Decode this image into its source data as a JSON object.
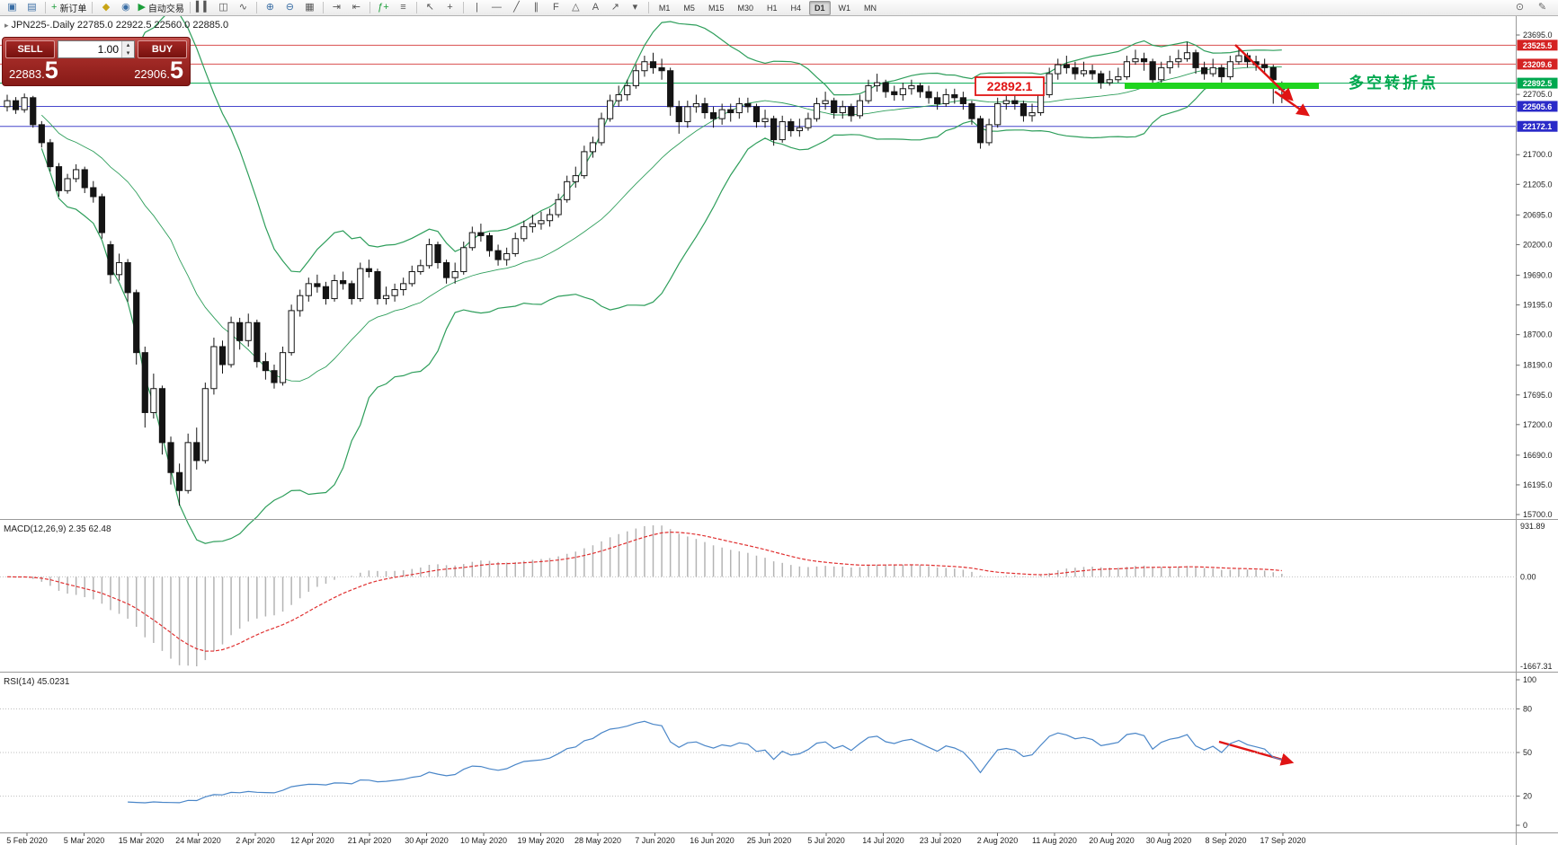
{
  "toolbar": {
    "items": [
      {
        "name": "new-chart-icon",
        "glyph": "▣",
        "color": "#3a6ea5"
      },
      {
        "name": "profiles-icon",
        "glyph": "▤",
        "color": "#3a6ea5"
      },
      {
        "sep": true
      },
      {
        "name": "new-order-button",
        "glyph": "+",
        "color": "#1c9e3a",
        "label": "新订单"
      },
      {
        "sep": true
      },
      {
        "name": "alerts-icon",
        "glyph": "◆",
        "color": "#c8a415"
      },
      {
        "name": "market-watch-icon",
        "glyph": "◉",
        "color": "#3a6ea5"
      },
      {
        "name": "autotrading-button",
        "glyph": "▶",
        "color": "#1c9e3a",
        "label": "自动交易"
      },
      {
        "sep": true
      },
      {
        "name": "bar-chart-icon",
        "glyph": "▍▍",
        "color": "#555555"
      },
      {
        "name": "candlestick-chart-icon",
        "glyph": "◫",
        "color": "#555555"
      },
      {
        "name": "line-chart-icon",
        "glyph": "∿",
        "color": "#555555"
      },
      {
        "sep": true
      },
      {
        "name": "zoom-in-icon",
        "glyph": "⊕",
        "color": "#3a6ea5"
      },
      {
        "name": "zoom-out-icon",
        "glyph": "⊖",
        "color": "#3a6ea5"
      },
      {
        "name": "tile-windows-icon",
        "glyph": "▦",
        "color": "#555555"
      },
      {
        "sep": true
      },
      {
        "name": "auto-scroll-icon",
        "glyph": "⇥",
        "color": "#555555"
      },
      {
        "name": "chart-shift-icon",
        "glyph": "⇤",
        "color": "#555555"
      },
      {
        "sep": true
      },
      {
        "name": "indicators-icon",
        "glyph": "ƒ+",
        "color": "#1c9e3a"
      },
      {
        "name": "indicator-list-icon",
        "glyph": "≡",
        "color": "#555555"
      },
      {
        "sep": true
      },
      {
        "name": "cursor-icon",
        "glyph": "↖",
        "color": "#555555"
      },
      {
        "name": "crosshair-icon",
        "glyph": "+",
        "color": "#555555"
      },
      {
        "sep": true
      },
      {
        "name": "vertical-line-icon",
        "glyph": "|",
        "color": "#555555"
      },
      {
        "name": "horizontal-line-icon",
        "glyph": "—",
        "color": "#555555"
      },
      {
        "name": "trendline-icon",
        "glyph": "╱",
        "color": "#555555"
      },
      {
        "name": "channel-icon",
        "glyph": "∥",
        "color": "#555555"
      },
      {
        "name": "fibonacci-icon",
        "glyph": "F",
        "color": "#555555"
      },
      {
        "name": "shapes-icon",
        "glyph": "△",
        "color": "#555555"
      },
      {
        "name": "text-icon",
        "glyph": "A",
        "color": "#555555"
      },
      {
        "name": "arrows-icon",
        "glyph": "↗",
        "color": "#555555"
      },
      {
        "name": "objects-dropdown-icon",
        "glyph": "▾",
        "color": "#555555"
      },
      {
        "sep": true
      },
      {
        "timeframes": true
      }
    ],
    "timeframes": {
      "list": [
        "M1",
        "M5",
        "M15",
        "M30",
        "H1",
        "H4",
        "D1",
        "W1",
        "MN"
      ],
      "active": "D1"
    },
    "right_items": [
      {
        "name": "quick-search-icon",
        "glyph": "⊙",
        "color": "#666666"
      },
      {
        "name": "edit-icon",
        "glyph": "✎",
        "color": "#666666"
      }
    ]
  },
  "trade_panel": {
    "sell_label": "SELL",
    "buy_label": "BUY",
    "volume": "1.00",
    "bid_small": "22883.",
    "bid_big": "5",
    "ask_small": "22906.",
    "ask_big": "5"
  },
  "chart": {
    "symbol_icon": "▸",
    "symbol_line": "JPN225-.Daily 22785.0 22922.5 22560.0 22885.0",
    "colors": {
      "bands": "#2e9e5b",
      "bull": "#ffffff",
      "bear": "#141414",
      "wick": "#141414"
    },
    "price_axis_ticks": [
      "23695.0",
      "22705.0",
      "21700.0",
      "21205.0",
      "20695.0",
      "20200.0",
      "19690.0",
      "19195.0",
      "18700.0",
      "18190.0",
      "17695.0",
      "17200.0",
      "16690.0",
      "16195.0",
      "15700.0"
    ],
    "hlines": [
      {
        "label": "23525.5",
        "price": 23525.5,
        "line": "#d94f4f",
        "tag": "#d42222"
      },
      {
        "label": "23209.6",
        "price": 23209.6,
        "line": "#d94f4f",
        "tag": "#d42222"
      },
      {
        "label": "22892.5",
        "price": 22892.5,
        "line": "#00a84f",
        "tag": "#00a84f"
      },
      {
        "label": "22505.6",
        "price": 22505.6,
        "line": "#4646cc",
        "tag": "#2a2ac8"
      },
      {
        "label": "22172.1",
        "price": 22172.1,
        "line": "#4646cc",
        "tag": "#2a2ac8"
      }
    ],
    "annotations": {
      "price_flag": "22892.1",
      "turning_point_label": "多空转折点",
      "flag_color": "#e01414",
      "label_color": "#00a84f",
      "highlight_color": "#1fd41f",
      "arrow_color": "#e01414"
    }
  },
  "chart_data": {
    "type": "candlestick",
    "symbol": "JPN225-",
    "timeframe": "Daily",
    "ohlc_display": {
      "open": "22785.0",
      "high": "22922.5",
      "low": "22560.0",
      "close": "22885.0"
    },
    "ylim": [
      15700,
      23695
    ],
    "x_labels": [
      "5 Feb 2020",
      "5 Mar 2020",
      "15 Mar 2020",
      "24 Mar 2020",
      "2 Apr 2020",
      "12 Apr 2020",
      "21 Apr 2020",
      "30 Apr 2020",
      "10 May 2020",
      "19 May 2020",
      "28 May 2020",
      "7 Jun 2020",
      "16 Jun 2020",
      "25 Jun 2020",
      "5 Jul 2020",
      "14 Jul 2020",
      "23 Jul 2020",
      "2 Aug 2020",
      "11 Aug 2020",
      "20 Aug 2020",
      "30 Aug 2020",
      "8 Sep 2020",
      "17 Sep 2020"
    ],
    "candles": [
      [
        22500,
        22700,
        22420,
        22600
      ],
      [
        22600,
        22660,
        22380,
        22450
      ],
      [
        22450,
        22720,
        22400,
        22650
      ],
      [
        22650,
        22680,
        22150,
        22200
      ],
      [
        22200,
        22260,
        21820,
        21900
      ],
      [
        21900,
        21960,
        21420,
        21500
      ],
      [
        21500,
        21560,
        21000,
        21100
      ],
      [
        21100,
        21380,
        21050,
        21300
      ],
      [
        21300,
        21540,
        21240,
        21450
      ],
      [
        21450,
        21500,
        21060,
        21150
      ],
      [
        21150,
        21260,
        20900,
        21000
      ],
      [
        21000,
        21050,
        20300,
        20400
      ],
      [
        20200,
        20260,
        19550,
        19700
      ],
      [
        19700,
        20050,
        19600,
        19900
      ],
      [
        19900,
        19960,
        19250,
        19400
      ],
      [
        19400,
        19450,
        18200,
        18400
      ],
      [
        18400,
        18500,
        17150,
        17400
      ],
      [
        17400,
        18050,
        17300,
        17800
      ],
      [
        17800,
        17850,
        16700,
        16900
      ],
      [
        16900,
        17000,
        16200,
        16400
      ],
      [
        16400,
        16550,
        15850,
        16100
      ],
      [
        16100,
        17050,
        16050,
        16900
      ],
      [
        16900,
        17150,
        16450,
        16600
      ],
      [
        16600,
        17900,
        16550,
        17800
      ],
      [
        17800,
        18650,
        17700,
        18500
      ],
      [
        18500,
        18600,
        18050,
        18200
      ],
      [
        18200,
        19000,
        18150,
        18900
      ],
      [
        18900,
        18980,
        18450,
        18600
      ],
      [
        18600,
        19050,
        18500,
        18900
      ],
      [
        18900,
        18950,
        18150,
        18250
      ],
      [
        18250,
        18400,
        17950,
        18100
      ],
      [
        18100,
        18200,
        17800,
        17900
      ],
      [
        17900,
        18500,
        17850,
        18400
      ],
      [
        18400,
        19200,
        18350,
        19100
      ],
      [
        19100,
        19450,
        19000,
        19350
      ],
      [
        19350,
        19650,
        19250,
        19550
      ],
      [
        19550,
        19700,
        19400,
        19500
      ],
      [
        19500,
        19580,
        19200,
        19300
      ],
      [
        19300,
        19700,
        19250,
        19600
      ],
      [
        19600,
        19750,
        19450,
        19550
      ],
      [
        19550,
        19600,
        19200,
        19300
      ],
      [
        19300,
        19900,
        19250,
        19800
      ],
      [
        19800,
        19950,
        19650,
        19750
      ],
      [
        19750,
        19800,
        19200,
        19300
      ],
      [
        19300,
        19500,
        19200,
        19350
      ],
      [
        19350,
        19550,
        19250,
        19450
      ],
      [
        19450,
        19650,
        19350,
        19550
      ],
      [
        19550,
        19850,
        19500,
        19750
      ],
      [
        19750,
        19950,
        19700,
        19850
      ],
      [
        19850,
        20300,
        19800,
        20200
      ],
      [
        20200,
        20250,
        19800,
        19900
      ],
      [
        19900,
        19950,
        19550,
        19650
      ],
      [
        19650,
        19900,
        19550,
        19750
      ],
      [
        19750,
        20250,
        19700,
        20150
      ],
      [
        20150,
        20500,
        20100,
        20400
      ],
      [
        20400,
        20550,
        20250,
        20350
      ],
      [
        20350,
        20400,
        20000,
        20100
      ],
      [
        20100,
        20200,
        19850,
        19950
      ],
      [
        19950,
        20150,
        19850,
        20050
      ],
      [
        20050,
        20400,
        20000,
        20300
      ],
      [
        20300,
        20600,
        20250,
        20500
      ],
      [
        20500,
        20700,
        20400,
        20550
      ],
      [
        20550,
        20750,
        20450,
        20600
      ],
      [
        20600,
        20800,
        20500,
        20700
      ],
      [
        20700,
        21050,
        20650,
        20950
      ],
      [
        20950,
        21350,
        20900,
        21250
      ],
      [
        21250,
        21500,
        21150,
        21350
      ],
      [
        21350,
        21850,
        21300,
        21750
      ],
      [
        21750,
        22000,
        21650,
        21900
      ],
      [
        21900,
        22400,
        21850,
        22300
      ],
      [
        22300,
        22700,
        22250,
        22600
      ],
      [
        22600,
        22850,
        22500,
        22700
      ],
      [
        22700,
        22950,
        22600,
        22850
      ],
      [
        22850,
        23200,
        22800,
        23100
      ],
      [
        23100,
        23350,
        23000,
        23250
      ],
      [
        23250,
        23400,
        23050,
        23150
      ],
      [
        23150,
        23300,
        22950,
        23100
      ],
      [
        23100,
        23150,
        22350,
        22500
      ],
      [
        22500,
        22600,
        22050,
        22250
      ],
      [
        22250,
        22600,
        22150,
        22500
      ],
      [
        22500,
        22700,
        22400,
        22550
      ],
      [
        22550,
        22650,
        22300,
        22400
      ],
      [
        22400,
        22500,
        22150,
        22300
      ],
      [
        22300,
        22550,
        22200,
        22450
      ],
      [
        22450,
        22550,
        22250,
        22400
      ],
      [
        22400,
        22650,
        22300,
        22550
      ],
      [
        22550,
        22650,
        22400,
        22500
      ],
      [
        22500,
        22550,
        22150,
        22250
      ],
      [
        22250,
        22450,
        22150,
        22300
      ],
      [
        22300,
        22350,
        21850,
        21950
      ],
      [
        21950,
        22350,
        21900,
        22250
      ],
      [
        22250,
        22300,
        22000,
        22100
      ],
      [
        22100,
        22300,
        22000,
        22150
      ],
      [
        22150,
        22400,
        22100,
        22300
      ],
      [
        22300,
        22650,
        22250,
        22550
      ],
      [
        22550,
        22750,
        22450,
        22600
      ],
      [
        22600,
        22650,
        22300,
        22400
      ],
      [
        22400,
        22600,
        22300,
        22500
      ],
      [
        22500,
        22550,
        22250,
        22350
      ],
      [
        22350,
        22700,
        22300,
        22600
      ],
      [
        22600,
        22950,
        22550,
        22850
      ],
      [
        22850,
        23050,
        22750,
        22900
      ],
      [
        22900,
        22950,
        22650,
        22750
      ],
      [
        22750,
        22850,
        22600,
        22700
      ],
      [
        22700,
        22900,
        22600,
        22800
      ],
      [
        22800,
        22950,
        22700,
        22850
      ],
      [
        22850,
        22900,
        22650,
        22750
      ],
      [
        22750,
        22850,
        22550,
        22650
      ],
      [
        22650,
        22750,
        22450,
        22550
      ],
      [
        22550,
        22800,
        22500,
        22700
      ],
      [
        22700,
        22800,
        22550,
        22650
      ],
      [
        22650,
        22750,
        22450,
        22550
      ],
      [
        22550,
        22600,
        22200,
        22300
      ],
      [
        22300,
        22350,
        21800,
        21900
      ],
      [
        21900,
        22300,
        21850,
        22200
      ],
      [
        22200,
        22650,
        22150,
        22550
      ],
      [
        22550,
        22750,
        22450,
        22600
      ],
      [
        22600,
        22700,
        22450,
        22550
      ],
      [
        22550,
        22600,
        22250,
        22350
      ],
      [
        22350,
        22550,
        22250,
        22400
      ],
      [
        22400,
        22800,
        22350,
        22700
      ],
      [
        22700,
        23150,
        22650,
        23050
      ],
      [
        23050,
        23300,
        22950,
        23200
      ],
      [
        23200,
        23350,
        23050,
        23150
      ],
      [
        23150,
        23250,
        22950,
        23050
      ],
      [
        23050,
        23250,
        23000,
        23100
      ],
      [
        23100,
        23200,
        22950,
        23050
      ],
      [
        23050,
        23100,
        22800,
        22900
      ],
      [
        22900,
        23100,
        22850,
        22950
      ],
      [
        22950,
        23150,
        22900,
        23000
      ],
      [
        23000,
        23350,
        22950,
        23250
      ],
      [
        23250,
        23450,
        23200,
        23300
      ],
      [
        23300,
        23400,
        23100,
        23250
      ],
      [
        23250,
        23300,
        22850,
        22950
      ],
      [
        22950,
        23250,
        22900,
        23150
      ],
      [
        23150,
        23350,
        23050,
        23250
      ],
      [
        23250,
        23450,
        23150,
        23300
      ],
      [
        23300,
        23580,
        23250,
        23400
      ],
      [
        23400,
        23450,
        23050,
        23150
      ],
      [
        23150,
        23250,
        22950,
        23050
      ],
      [
        23050,
        23300,
        23000,
        23150
      ],
      [
        23150,
        23200,
        22900,
        23000
      ],
      [
        23000,
        23350,
        22950,
        23250
      ],
      [
        23250,
        23480,
        23200,
        23350
      ],
      [
        23350,
        23400,
        23150,
        23250
      ],
      [
        23250,
        23350,
        23100,
        23200
      ],
      [
        23200,
        23300,
        23050,
        23150
      ],
      [
        23150,
        23200,
        22550,
        22950
      ],
      [
        22785,
        22922,
        22560,
        22885
      ]
    ],
    "overlays": {
      "bollinger": {
        "period": 20,
        "deviation": 2,
        "color": "#2e9e5b"
      }
    },
    "indicators": [
      {
        "name": "MACD",
        "title": "MACD(12,26,9) 2.35 62.48",
        "params": [
          12,
          26,
          9
        ],
        "values": [
          2.35,
          62.48
        ],
        "axis_labels": [
          "931.89",
          "0.00",
          "-1667.31"
        ],
        "hist_color": "#b4b4b4",
        "signal_color": "#e03030"
      },
      {
        "name": "RSI",
        "title": "RSI(14) 45.0231",
        "period": 14,
        "value": 45.0231,
        "axis_labels": [
          "100",
          "80",
          "50",
          "20",
          "0"
        ],
        "levels": [
          80,
          50,
          20
        ],
        "line_color": "#4a86c8"
      }
    ]
  }
}
